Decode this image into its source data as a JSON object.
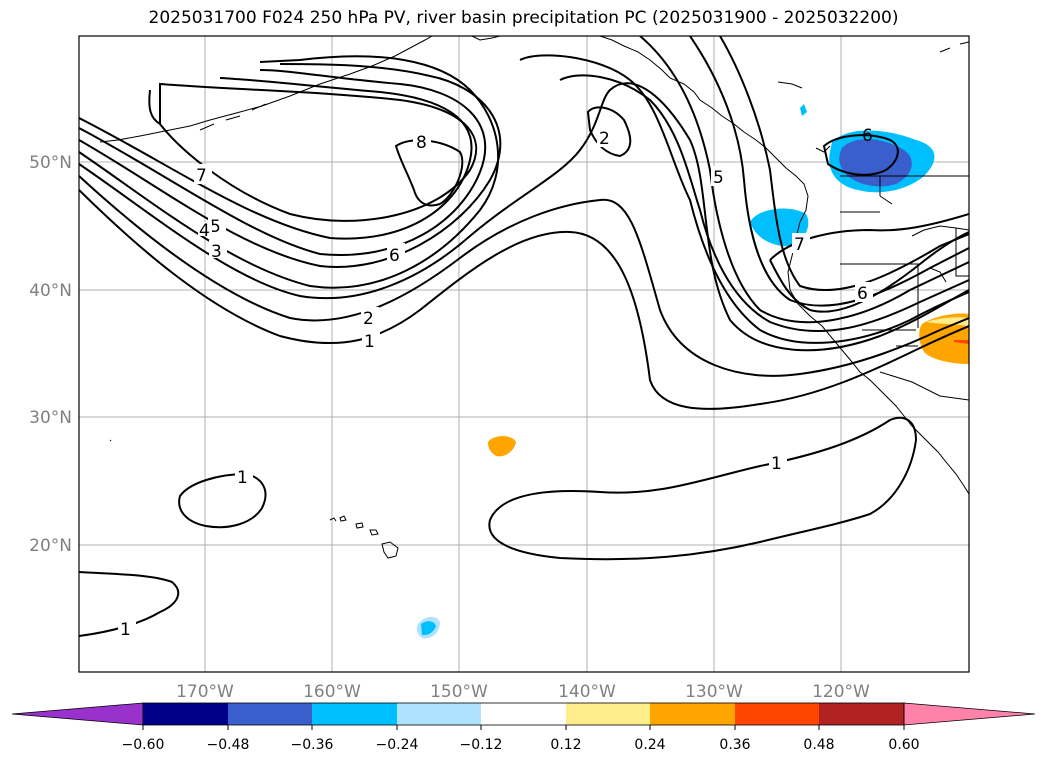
{
  "title": "2025031700 F024 250 hPa PV, river basin precipitation PC (2025031900 - 2025032200)",
  "map": {
    "lat_labels": [
      "50°N",
      "40°N",
      "30°N",
      "20°N"
    ],
    "lon_labels": [
      "170°W",
      "160°W",
      "150°W",
      "140°W",
      "130°W",
      "120°W"
    ],
    "contour_labels": [
      "8",
      "7",
      "6",
      "5",
      "4",
      "3",
      "2",
      "1",
      "2",
      "6",
      "5",
      "7",
      "6",
      "1",
      "1",
      "1"
    ],
    "contour_color": "#000000",
    "coastline_color": "#000000",
    "grid_color": "#b0b0b0"
  },
  "colorbar": {
    "colors": [
      "#9932cc",
      "#00008b",
      "#3a5fcd",
      "#00bfff",
      "#b0e2ff",
      "#ffffff",
      "#ffec8b",
      "#ffa500",
      "#ff4500",
      "#b22222",
      "#ff82ab"
    ],
    "tick_labels": [
      "−0.60",
      "−0.48",
      "−0.36",
      "−0.24",
      "−0.12",
      "0.12",
      "0.24",
      "0.36",
      "0.48",
      "0.60"
    ]
  }
}
